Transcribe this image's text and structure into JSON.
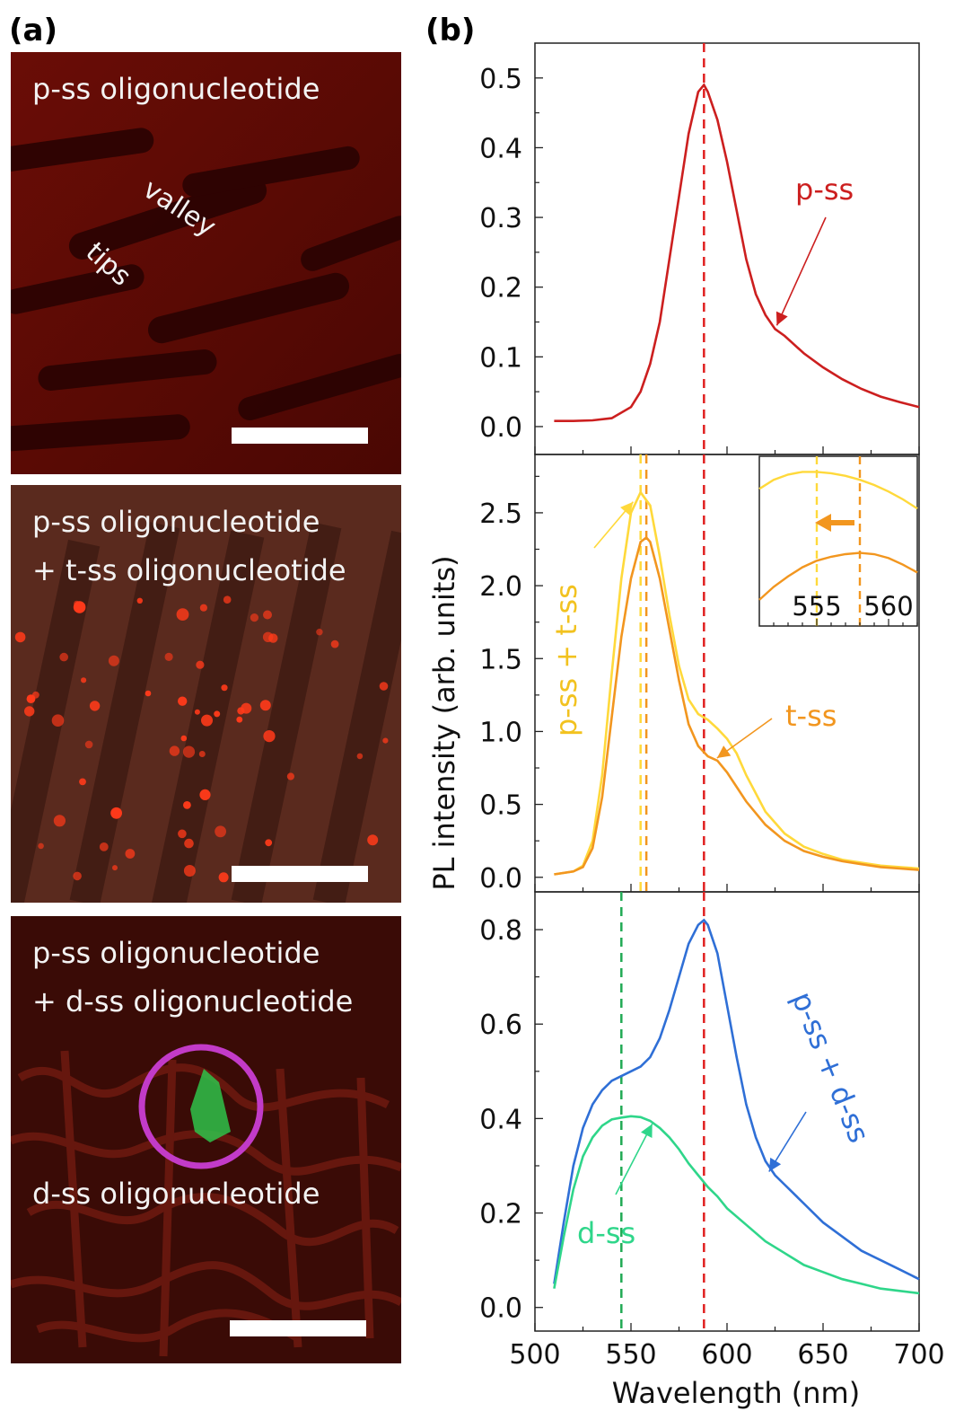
{
  "panels": {
    "a_label": "(a)",
    "b_label": "(b)"
  },
  "micrographs": [
    {
      "lines": [
        "p-ss oligonucleotide"
      ],
      "notes": [
        "valley",
        "tips"
      ]
    },
    {
      "lines": [
        "p-ss oligonucleotide",
        "+ t-ss oligonucleotide"
      ],
      "notes": []
    },
    {
      "lines": [
        "p-ss oligonucleotide",
        "+ d-ss oligonucleotide",
        "d-ss oligonucleotide"
      ],
      "notes": []
    }
  ],
  "colors": {
    "pss": "#cc1f1f",
    "tss": "#f2961f",
    "pss_tss": "#ffd93b",
    "pss_dss": "#2f6fd6",
    "dss": "#2fd68a",
    "ref_line_red": "#e02020",
    "ref_line_green": "#22aa55",
    "ring": "#c23bc8"
  },
  "chart_data": [
    {
      "type": "line",
      "xlim": [
        500,
        700
      ],
      "ylim": [
        -0.04,
        0.55
      ],
      "yticks": [
        0.0,
        0.1,
        0.2,
        0.3,
        0.4,
        0.5
      ],
      "ytick_labels": [
        "0.0",
        "0.1",
        "0.2",
        "0.3",
        "0.4",
        "0.5"
      ],
      "vlines": [
        588
      ],
      "series": [
        {
          "name": "p-ss",
          "x": [
            510,
            520,
            530,
            540,
            550,
            555,
            560,
            565,
            570,
            575,
            580,
            585,
            588,
            590,
            595,
            600,
            605,
            610,
            615,
            620,
            625,
            630,
            640,
            650,
            660,
            670,
            680,
            690,
            700
          ],
          "y": [
            0.008,
            0.008,
            0.009,
            0.012,
            0.028,
            0.05,
            0.09,
            0.15,
            0.24,
            0.33,
            0.42,
            0.48,
            0.49,
            0.48,
            0.44,
            0.38,
            0.31,
            0.24,
            0.19,
            0.16,
            0.14,
            0.13,
            0.105,
            0.085,
            0.068,
            0.054,
            0.043,
            0.035,
            0.028
          ]
        }
      ],
      "annotations": [
        {
          "text": "p-ss",
          "arrow_to": [
            625,
            0.14
          ]
        }
      ]
    },
    {
      "type": "line",
      "xlim": [
        500,
        700
      ],
      "ylim": [
        -0.1,
        2.9
      ],
      "yticks": [
        0.0,
        0.5,
        1.0,
        1.5,
        2.0,
        2.5
      ],
      "ytick_labels": [
        "0.0",
        "0.5",
        "1.0",
        "1.5",
        "2.0",
        "2.5"
      ],
      "vlines": [
        555,
        558,
        588
      ],
      "ylabel": "PL intensity (arb. units)",
      "series": [
        {
          "name": "p-ss + t-ss",
          "x": [
            510,
            520,
            525,
            530,
            535,
            540,
            545,
            550,
            555,
            560,
            565,
            570,
            575,
            580,
            585,
            590,
            595,
            600,
            605,
            610,
            620,
            630,
            640,
            650,
            660,
            670,
            680,
            690,
            700
          ],
          "y": [
            0.02,
            0.04,
            0.08,
            0.25,
            0.7,
            1.4,
            2.05,
            2.5,
            2.64,
            2.55,
            2.2,
            1.8,
            1.45,
            1.22,
            1.12,
            1.08,
            1.02,
            0.95,
            0.85,
            0.7,
            0.45,
            0.3,
            0.21,
            0.16,
            0.12,
            0.1,
            0.08,
            0.07,
            0.06
          ]
        },
        {
          "name": "t-ss",
          "x": [
            510,
            520,
            525,
            530,
            535,
            540,
            545,
            550,
            555,
            558,
            560,
            565,
            570,
            575,
            580,
            585,
            590,
            595,
            600,
            605,
            610,
            620,
            630,
            640,
            650,
            660,
            670,
            680,
            690,
            700
          ],
          "y": [
            0.02,
            0.04,
            0.07,
            0.2,
            0.55,
            1.1,
            1.65,
            2.05,
            2.3,
            2.33,
            2.3,
            2.05,
            1.7,
            1.35,
            1.05,
            0.9,
            0.83,
            0.8,
            0.72,
            0.62,
            0.52,
            0.36,
            0.25,
            0.18,
            0.14,
            0.11,
            0.09,
            0.07,
            0.06,
            0.05
          ]
        }
      ],
      "annotations": [
        {
          "text": "p-ss + t-ss",
          "arrow_to": [
            553,
            2.6
          ]
        },
        {
          "text": "t-ss",
          "arrow_to": [
            592,
            0.83
          ]
        }
      ],
      "inset": {
        "xlim": [
          551,
          562
        ],
        "xticks": [
          555,
          560
        ],
        "xtick_labels": [
          "555",
          "560"
        ],
        "ylim": [
          2.05,
          2.7
        ],
        "vlines": [
          555,
          558
        ],
        "series_x": [
          551,
          552,
          553,
          554,
          555,
          556,
          557,
          558,
          559,
          560,
          561,
          562
        ],
        "pss_tss_y": [
          2.575,
          2.61,
          2.63,
          2.64,
          2.64,
          2.635,
          2.625,
          2.61,
          2.59,
          2.565,
          2.535,
          2.5
        ],
        "tss_y": [
          2.15,
          2.2,
          2.24,
          2.275,
          2.3,
          2.315,
          2.325,
          2.33,
          2.325,
          2.31,
          2.285,
          2.255
        ]
      }
    },
    {
      "type": "line",
      "xlim": [
        500,
        700
      ],
      "ylim": [
        -0.05,
        0.88
      ],
      "yticks": [
        0.0,
        0.2,
        0.4,
        0.6,
        0.8
      ],
      "ytick_labels": [
        "0.0",
        "0.2",
        "0.4",
        "0.6",
        "0.8"
      ],
      "xticks": [
        500,
        550,
        600,
        650,
        700
      ],
      "xtick_labels": [
        "500",
        "550",
        "600",
        "650",
        "700"
      ],
      "xlabel": "Wavelength (nm)",
      "vlines": [
        545,
        588
      ],
      "series": [
        {
          "name": "p-ss + d-ss",
          "x": [
            510,
            515,
            520,
            525,
            530,
            535,
            540,
            545,
            550,
            555,
            560,
            565,
            570,
            575,
            580,
            585,
            588,
            590,
            595,
            600,
            605,
            610,
            615,
            620,
            625,
            630,
            640,
            650,
            660,
            670,
            680,
            690,
            700
          ],
          "y": [
            0.05,
            0.18,
            0.3,
            0.38,
            0.43,
            0.46,
            0.48,
            0.49,
            0.5,
            0.51,
            0.53,
            0.57,
            0.63,
            0.7,
            0.77,
            0.81,
            0.82,
            0.81,
            0.75,
            0.64,
            0.53,
            0.43,
            0.36,
            0.31,
            0.28,
            0.26,
            0.22,
            0.18,
            0.15,
            0.12,
            0.1,
            0.08,
            0.06
          ]
        },
        {
          "name": "d-ss",
          "x": [
            510,
            515,
            520,
            525,
            530,
            535,
            540,
            545,
            550,
            555,
            560,
            565,
            570,
            575,
            580,
            585,
            590,
            595,
            600,
            610,
            620,
            630,
            640,
            650,
            660,
            670,
            680,
            690,
            700
          ],
          "y": [
            0.04,
            0.15,
            0.25,
            0.32,
            0.36,
            0.385,
            0.398,
            0.402,
            0.405,
            0.403,
            0.395,
            0.38,
            0.36,
            0.335,
            0.305,
            0.28,
            0.255,
            0.235,
            0.21,
            0.175,
            0.14,
            0.115,
            0.09,
            0.075,
            0.06,
            0.05,
            0.04,
            0.035,
            0.03
          ]
        }
      ],
      "annotations": [
        {
          "text": "p-ss + d-ss",
          "arrow_to": [
            620,
            0.28
          ]
        },
        {
          "text": "d-ss",
          "arrow_to": [
            562,
            0.4
          ]
        }
      ]
    }
  ]
}
